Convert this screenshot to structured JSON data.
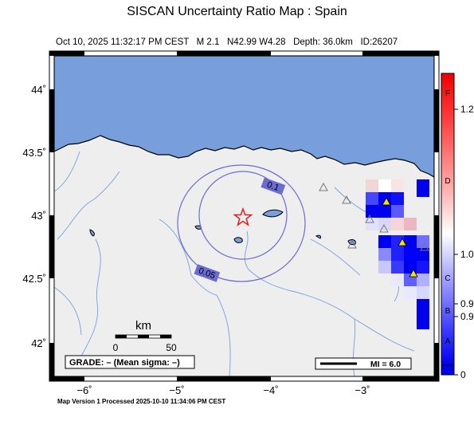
{
  "header": {
    "title": "SISCAN Uncertainty Ratio Map : Spain",
    "subtitle": "Oct 10, 2025 11:32:17 PM CEST   M 2.1   N42.99 W4.28   Depth: 36.0km   ID:26207"
  },
  "map": {
    "lon_ticks": [
      "−6˚",
      "−5˚",
      "−4˚",
      "−3˚"
    ],
    "lat_ticks": [
      "44˚",
      "43.5˚",
      "43˚",
      "42.5˚",
      "42˚"
    ],
    "contour_labels": [
      "0.1",
      "0.05"
    ],
    "scalebar": {
      "label": "km",
      "tick_start": "0",
      "tick_end": "50"
    },
    "grade_box": "GRADE: – (Mean sigma: –)",
    "mi_legend": "MI = 6.0",
    "colors": {
      "sea": "#789fdc",
      "land": "#eeeeee",
      "river": "#7a9fd8",
      "contour": "#6b6bd6",
      "epicenter": "#e21d1d"
    }
  },
  "colorbar": {
    "grades": [
      "F",
      "D",
      "C",
      "B",
      "A"
    ],
    "values": [
      "1.2",
      "1.0",
      "0.9",
      "0.9",
      "0"
    ]
  },
  "footer": {
    "text": "Map Version 1 Processed 2025-10-10 11:34:06 PM CEST"
  }
}
